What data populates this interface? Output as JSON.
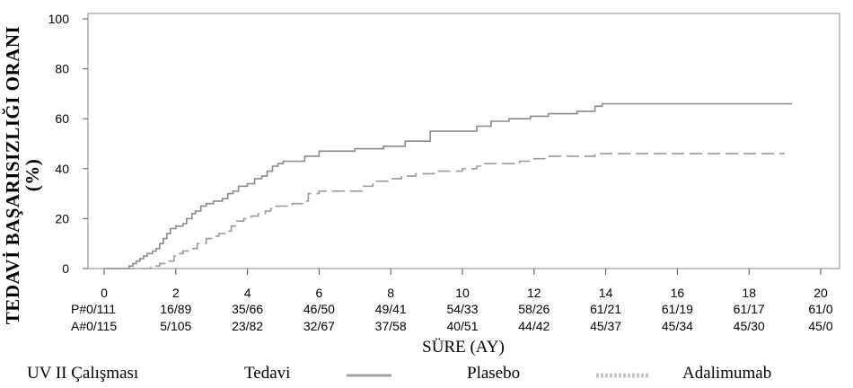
{
  "chart_data": {
    "type": "line",
    "ylabel_line1": "TEDAVİ BAŞARISIZLIĞI ORANI",
    "ylabel_line2": "(%)",
    "xlabel": "SÜRE (AY)",
    "xlim": [
      0,
      20
    ],
    "ylim": [
      0,
      100
    ],
    "x_ticks": [
      "0",
      "2",
      "4",
      "6",
      "8",
      "10",
      "12",
      "14",
      "16",
      "18",
      "20"
    ],
    "y_ticks": [
      "0",
      "20",
      "40",
      "60",
      "80",
      "100"
    ],
    "series": [
      {
        "name": "Plasebo",
        "style": "solid",
        "color": "#8a8a8a",
        "points": [
          [
            0,
            0
          ],
          [
            0.6,
            0
          ],
          [
            0.7,
            1
          ],
          [
            0.8,
            2
          ],
          [
            0.9,
            3
          ],
          [
            1.0,
            4
          ],
          [
            1.1,
            5
          ],
          [
            1.2,
            6
          ],
          [
            1.35,
            7
          ],
          [
            1.45,
            8
          ],
          [
            1.55,
            10
          ],
          [
            1.65,
            12
          ],
          [
            1.75,
            14
          ],
          [
            1.85,
            16
          ],
          [
            2.0,
            17
          ],
          [
            2.2,
            18
          ],
          [
            2.3,
            20
          ],
          [
            2.45,
            22
          ],
          [
            2.55,
            23
          ],
          [
            2.7,
            25
          ],
          [
            2.85,
            26
          ],
          [
            3.05,
            27
          ],
          [
            3.3,
            28
          ],
          [
            3.45,
            30
          ],
          [
            3.6,
            31
          ],
          [
            3.75,
            33
          ],
          [
            4.0,
            34
          ],
          [
            4.2,
            36
          ],
          [
            4.4,
            37
          ],
          [
            4.55,
            39
          ],
          [
            4.7,
            41
          ],
          [
            4.85,
            42
          ],
          [
            5.0,
            43
          ],
          [
            5.6,
            45
          ],
          [
            6.0,
            47
          ],
          [
            7.0,
            48
          ],
          [
            7.8,
            49
          ],
          [
            8.4,
            51
          ],
          [
            9.1,
            55
          ],
          [
            10.4,
            57
          ],
          [
            10.8,
            59
          ],
          [
            11.3,
            60
          ],
          [
            11.9,
            61
          ],
          [
            12.4,
            62
          ],
          [
            13.2,
            63
          ],
          [
            13.7,
            65
          ],
          [
            13.9,
            66
          ],
          [
            19.2,
            66
          ]
        ]
      },
      {
        "name": "Adalimumab",
        "style": "dashed",
        "color": "#9a9a9a",
        "points": [
          [
            0,
            0
          ],
          [
            1.2,
            0
          ],
          [
            1.3,
            1
          ],
          [
            1.55,
            2
          ],
          [
            1.8,
            3
          ],
          [
            1.95,
            5
          ],
          [
            2.05,
            6
          ],
          [
            2.2,
            7
          ],
          [
            2.4,
            8
          ],
          [
            2.6,
            10
          ],
          [
            2.85,
            12
          ],
          [
            3.05,
            13
          ],
          [
            3.2,
            14
          ],
          [
            3.4,
            15
          ],
          [
            3.55,
            17
          ],
          [
            3.7,
            19
          ],
          [
            3.9,
            20
          ],
          [
            4.1,
            21
          ],
          [
            4.3,
            22
          ],
          [
            4.5,
            23
          ],
          [
            4.65,
            24
          ],
          [
            4.8,
            25
          ],
          [
            5.25,
            26
          ],
          [
            5.6,
            27
          ],
          [
            5.7,
            30
          ],
          [
            6.0,
            31
          ],
          [
            7.2,
            33
          ],
          [
            7.5,
            35
          ],
          [
            8.0,
            36
          ],
          [
            8.3,
            37
          ],
          [
            8.7,
            38
          ],
          [
            9.2,
            39
          ],
          [
            10.0,
            40
          ],
          [
            10.4,
            41
          ],
          [
            10.6,
            42
          ],
          [
            11.6,
            43
          ],
          [
            12.0,
            44
          ],
          [
            12.3,
            45
          ],
          [
            13.5,
            45
          ],
          [
            13.7,
            46
          ],
          [
            19.0,
            46
          ]
        ]
      }
    ],
    "at_risk_rows": [
      {
        "label": "P#0/111",
        "values": [
          "16/89",
          "35/66",
          "46/50",
          "49/41",
          "54/33",
          "58/26",
          "61/21",
          "61/19",
          "61/17",
          "61/0"
        ]
      },
      {
        "label": "A#0/115",
        "values": [
          "5/105",
          "23/82",
          "32/67",
          "37/58",
          "40/51",
          "44/42",
          "45/37",
          "45/34",
          "45/30",
          "45/0"
        ]
      }
    ],
    "footer": {
      "study": "UV II Çalışması",
      "tedavi": "Tedavi",
      "plasebo": "Plasebo",
      "adalimumab": "Adalimumab"
    }
  }
}
